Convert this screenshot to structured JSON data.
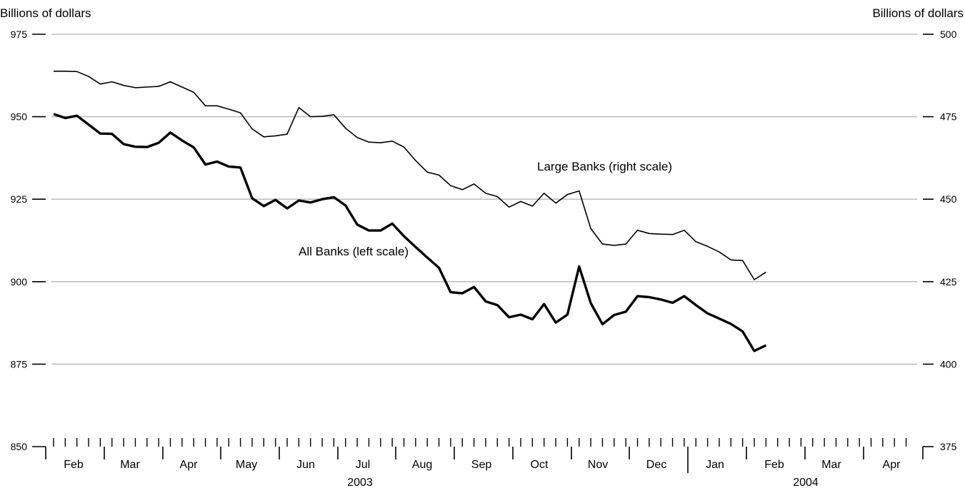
{
  "chart_data": {
    "type": "line",
    "left_axis_title": "Billions of dollars",
    "right_axis_title": "Billions of dollars",
    "left_ylim": [
      850,
      975
    ],
    "right_ylim": [
      375,
      500
    ],
    "left_ticks": [
      850,
      875,
      900,
      925,
      950,
      975
    ],
    "right_ticks": [
      375,
      400,
      425,
      450,
      475,
      500
    ],
    "gridlines": [
      875,
      900,
      925,
      950,
      975
    ],
    "grid": true,
    "month_labels": [
      "Feb",
      "Mar",
      "Apr",
      "May",
      "Jun",
      "Jul",
      "Aug",
      "Sep",
      "Oct",
      "Nov",
      "Dec",
      "Jan",
      "Feb",
      "Mar",
      "Apr"
    ],
    "year_labels": [
      "2003",
      "2004"
    ],
    "series": [
      {
        "name": "All Banks (left scale)",
        "axis": "left",
        "color": "#000000",
        "values": [
          950.8,
          949.6,
          950.3,
          947.6,
          944.9,
          944.8,
          941.7,
          940.9,
          940.8,
          942.1,
          945.2,
          942.8,
          940.7,
          935.5,
          936.4,
          934.9,
          934.6,
          925.3,
          922.9,
          924.8,
          922.2,
          924.6,
          924.0,
          925.0,
          925.6,
          923.1,
          917.3,
          915.5,
          915.5,
          917.6,
          913.8,
          910.5,
          907.3,
          904.2,
          896.8,
          896.5,
          898.4,
          894.0,
          892.9,
          889.2,
          890.0,
          888.6,
          893.2,
          887.6,
          890.0,
          904.6,
          893.5,
          887.1,
          889.9,
          890.9,
          895.6,
          895.3,
          894.6,
          893.6,
          895.6,
          892.9,
          890.4,
          888.8,
          887.2,
          884.9,
          879.0,
          880.7
        ]
      },
      {
        "name": "Large Banks (right scale)",
        "axis": "right",
        "color": "#000000",
        "values": [
          488.8,
          488.8,
          488.7,
          487.2,
          484.9,
          485.6,
          484.5,
          483.8,
          484.0,
          484.2,
          485.6,
          484.0,
          482.4,
          478.3,
          478.3,
          477.3,
          476.2,
          471.3,
          468.9,
          469.2,
          469.7,
          477.8,
          475.0,
          475.1,
          475.6,
          471.5,
          468.7,
          467.3,
          467.1,
          467.6,
          465.8,
          461.7,
          458.2,
          457.3,
          454.1,
          452.9,
          454.6,
          451.8,
          450.8,
          447.6,
          449.3,
          447.9,
          451.8,
          448.8,
          451.4,
          452.5,
          441.1,
          436.4,
          436.0,
          436.4,
          440.6,
          439.6,
          439.4,
          439.3,
          440.6,
          437.1,
          435.7,
          434.0,
          431.6,
          431.4,
          425.6,
          427.9
        ]
      }
    ],
    "annotations": [
      {
        "text": "Large Banks (right scale)",
        "series": 1
      },
      {
        "text": "All Banks (left scale)",
        "series": 0
      }
    ]
  }
}
